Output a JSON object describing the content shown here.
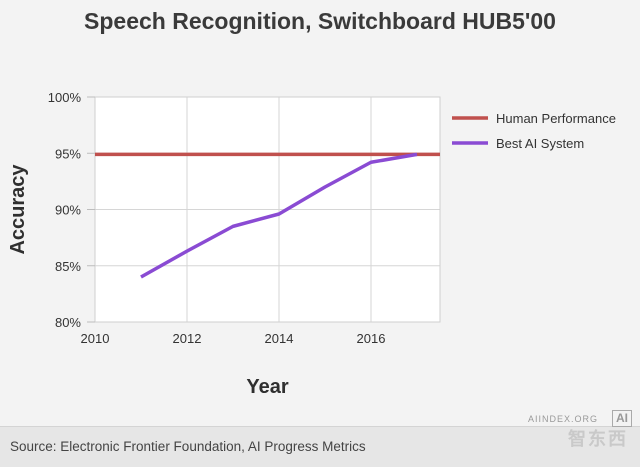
{
  "chart_data": {
    "type": "line",
    "title": "Speech Recognition, Switchboard HUB5'00",
    "xlabel": "Year",
    "ylabel": "Accuracy",
    "xlim": [
      2010,
      2017.5
    ],
    "ylim": [
      80,
      100
    ],
    "x_ticks": [
      2010,
      2012,
      2014,
      2016
    ],
    "x_tick_labels": [
      "2010",
      "2012",
      "2014",
      "2016"
    ],
    "y_ticks": [
      80,
      85,
      90,
      95,
      100
    ],
    "y_tick_labels": [
      "80%",
      "85%",
      "90%",
      "95%",
      "100%"
    ],
    "grid": true,
    "legend_position": "right",
    "series": [
      {
        "name": "Human Performance",
        "color": "#c0504d",
        "x": [
          2010,
          2017.5
        ],
        "values": [
          94.9,
          94.9
        ]
      },
      {
        "name": "Best AI System",
        "color": "#8a4bd3",
        "x": [
          2011,
          2012,
          2013,
          2014,
          2015,
          2016,
          2017
        ],
        "values": [
          84,
          86.3,
          88.5,
          89.6,
          92,
          94.2,
          94.9
        ]
      }
    ]
  },
  "footer": {
    "source": "Source: Electronic Frontier Foundation, AI Progress Metrics"
  },
  "watermark": {
    "url": "AIINDEX.ORG",
    "logo": "AI",
    "brand": "智东西"
  }
}
